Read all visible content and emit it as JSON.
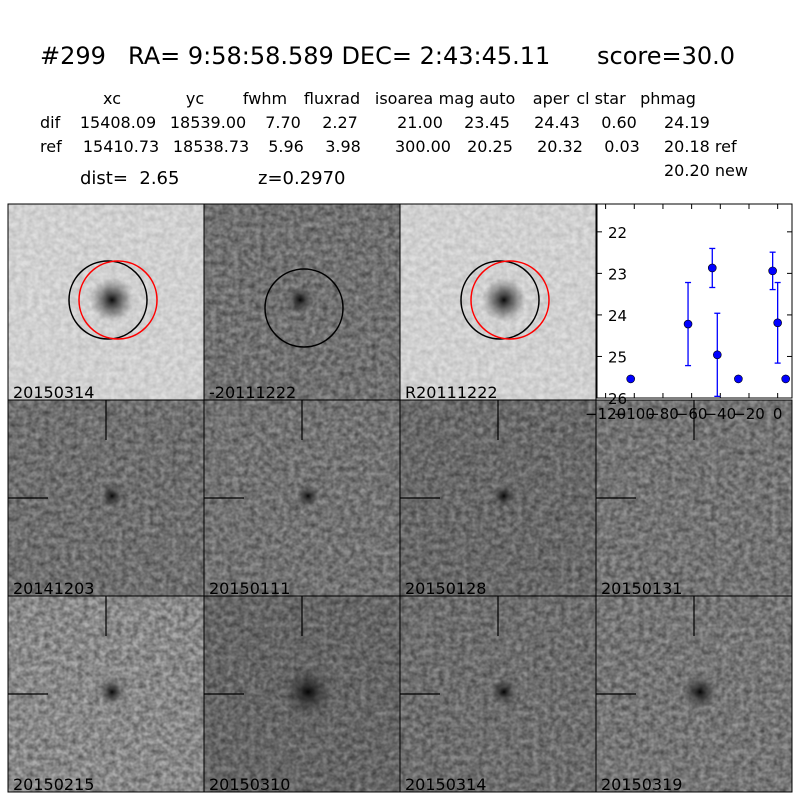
{
  "header": {
    "id": "#299",
    "coords": "RA= 9:58:58.589 DEC= 2:43:45.11",
    "score": "score=30.0"
  },
  "table": {
    "columns": [
      "xc",
      "yc",
      "fwhm",
      "fluxrad",
      "isoarea",
      "mag auto",
      "aper",
      "cl star",
      "phmag"
    ],
    "rows": [
      [
        "dif",
        "15408.09",
        "18539.00",
        "7.70",
        "2.27",
        "21.00",
        "23.45",
        "24.43",
        "0.60",
        "24.19"
      ],
      [
        "ref",
        "15410.73",
        "18538.73",
        "5.96",
        "3.98",
        "300.00",
        "20.25",
        "20.32",
        "0.03",
        "20.18 ref"
      ]
    ],
    "extra": "20.20 new"
  },
  "dist": "dist=  2.65",
  "redshift": "z=0.2970",
  "panels": [
    {
      "label": "20150314"
    },
    {
      "label": "-20111222"
    },
    {
      "label": "R20111222"
    },
    {
      "label": "20141203"
    },
    {
      "label": "20150111"
    },
    {
      "label": "20150128"
    },
    {
      "label": "20150131"
    },
    {
      "label": "20150215"
    },
    {
      "label": "20150310"
    },
    {
      "label": "20150314",
      "color": "#ff0000"
    },
    {
      "label": "20150319"
    }
  ],
  "chart_data": {
    "type": "scatter",
    "x": [
      -102.5,
      -62.5,
      -45.6,
      -42.1,
      -27.4,
      -3.5,
      0,
      5.6
    ],
    "series": [
      {
        "color": "#0000ff",
        "values": [
          25.54,
          24.22,
          22.87,
          24.96,
          25.54,
          22.94,
          24.19,
          25.54
        ],
        "errors": [
          0.05,
          1.0,
          0.47,
          1.0,
          0.05,
          0.45,
          0.97,
          0.05
        ]
      }
    ],
    "xlim": [
      -126,
      10
    ],
    "ylim": [
      26,
      21.33
    ],
    "xticks": [
      {
        "value": -120,
        "label": "−120"
      },
      {
        "value": -100,
        "label": "−100"
      },
      {
        "value": -80,
        "label": "−80"
      },
      {
        "value": -60,
        "label": "−60"
      },
      {
        "value": -40,
        "label": "−40"
      },
      {
        "value": -20,
        "label": "−20"
      },
      0
    ],
    "yticks": [
      22,
      23,
      24,
      25,
      26
    ]
  }
}
